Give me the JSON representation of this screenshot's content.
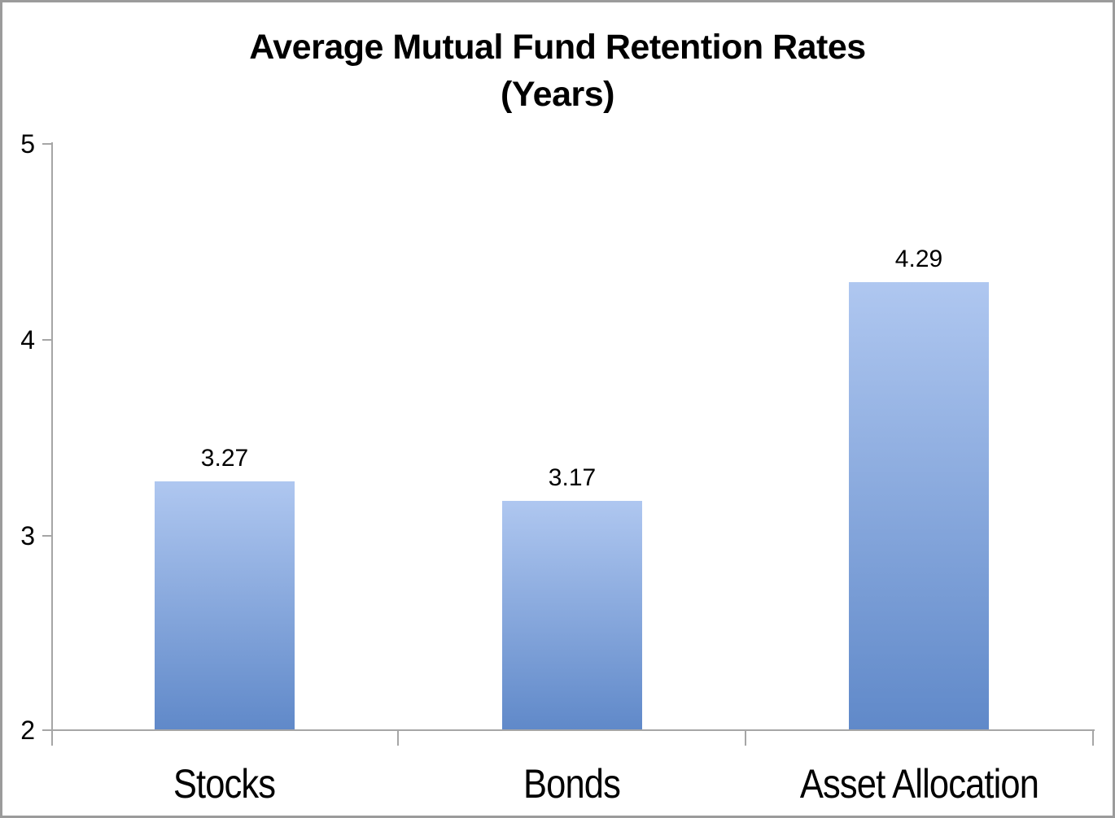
{
  "chart_data": {
    "type": "bar",
    "title": "Average Mutual Fund Retention Rates (Years)",
    "title_line1": "Average Mutual Fund Retention Rates",
    "title_line2": "(Years)",
    "categories": [
      "Stocks",
      "Bonds",
      "Asset Allocation"
    ],
    "values": [
      3.27,
      3.17,
      4.29
    ],
    "value_labels": [
      "3.27",
      "3.17",
      "4.29"
    ],
    "xlabel": "",
    "ylabel": "",
    "ylim": [
      2,
      5
    ],
    "y_tick_values": [
      5,
      4,
      3,
      2
    ],
    "y_tick_labels": [
      "5",
      "4",
      "3",
      "2"
    ],
    "grid": false,
    "legend": false,
    "colors": {
      "bar_gradient_top": "#AFC7F0",
      "bar_gradient_bottom": "#6089C9",
      "axis": "#A6A6A6",
      "text": "#000000",
      "frame_border": "#9B9B9B",
      "background": "#FFFFFF"
    }
  }
}
